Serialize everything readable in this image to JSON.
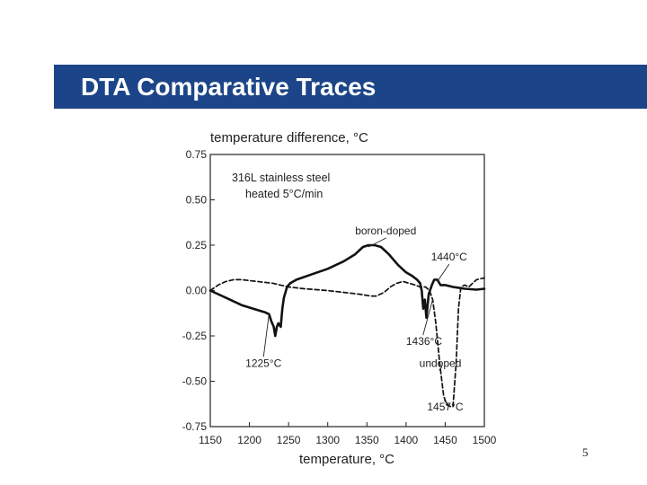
{
  "slide": {
    "title": "DTA Comparative Traces",
    "page_number": "5",
    "accent_color": "#1c4589"
  },
  "chart_data": {
    "type": "line",
    "title": "",
    "ylabel": "temperature difference, °C",
    "xlabel": "temperature, °C",
    "xlim": [
      1150,
      1500
    ],
    "ylim": [
      -0.75,
      0.75
    ],
    "x_ticks": [
      1150,
      1200,
      1250,
      1300,
      1350,
      1400,
      1450,
      1500
    ],
    "x_tick_labels": [
      "1150",
      "1200",
      "1250",
      "1300",
      "1350",
      "1400",
      "1450",
      "1500"
    ],
    "y_ticks": [
      0.75,
      0.5,
      0.25,
      0.0,
      -0.25,
      -0.5,
      -0.75
    ],
    "y_tick_labels": [
      "0.75",
      "0.50",
      "0.25",
      "0.00",
      "-0.25",
      "-0.50",
      "-0.75"
    ],
    "grid": false,
    "inset_text": [
      "316L stainless steel",
      "heated 5°C/min"
    ],
    "series": [
      {
        "name": "boron-doped",
        "style": "solid",
        "color": "#111111",
        "points": [
          [
            1150,
            0.0
          ],
          [
            1160,
            -0.02
          ],
          [
            1175,
            -0.05
          ],
          [
            1190,
            -0.08
          ],
          [
            1205,
            -0.1
          ],
          [
            1220,
            -0.12
          ],
          [
            1225,
            -0.13
          ],
          [
            1228,
            -0.17
          ],
          [
            1231,
            -0.2
          ],
          [
            1233,
            -0.25
          ],
          [
            1235,
            -0.2
          ],
          [
            1237,
            -0.18
          ],
          [
            1240,
            -0.2
          ],
          [
            1242,
            -0.1
          ],
          [
            1244,
            -0.04
          ],
          [
            1248,
            0.02
          ],
          [
            1252,
            0.04
          ],
          [
            1260,
            0.06
          ],
          [
            1280,
            0.09
          ],
          [
            1300,
            0.12
          ],
          [
            1320,
            0.16
          ],
          [
            1335,
            0.2
          ],
          [
            1345,
            0.24
          ],
          [
            1352,
            0.25
          ],
          [
            1360,
            0.25
          ],
          [
            1368,
            0.24
          ],
          [
            1378,
            0.2
          ],
          [
            1390,
            0.14
          ],
          [
            1400,
            0.1
          ],
          [
            1408,
            0.08
          ],
          [
            1414,
            0.06
          ],
          [
            1418,
            0.04
          ],
          [
            1420,
            0.0
          ],
          [
            1422,
            -0.1
          ],
          [
            1424,
            -0.05
          ],
          [
            1426,
            -0.15
          ],
          [
            1429,
            -0.02
          ],
          [
            1433,
            0.03
          ],
          [
            1436,
            0.06
          ],
          [
            1440,
            0.06
          ],
          [
            1444,
            0.03
          ],
          [
            1450,
            0.03
          ],
          [
            1460,
            0.02
          ],
          [
            1475,
            0.01
          ],
          [
            1490,
            0.005
          ],
          [
            1500,
            0.01
          ]
        ]
      },
      {
        "name": "undoped",
        "style": "dashed",
        "color": "#111111",
        "points": [
          [
            1150,
            0.0
          ],
          [
            1160,
            0.03
          ],
          [
            1170,
            0.05
          ],
          [
            1180,
            0.06
          ],
          [
            1190,
            0.06
          ],
          [
            1210,
            0.05
          ],
          [
            1230,
            0.04
          ],
          [
            1250,
            0.02
          ],
          [
            1270,
            0.01
          ],
          [
            1300,
            0.0
          ],
          [
            1320,
            -0.01
          ],
          [
            1340,
            -0.02
          ],
          [
            1355,
            -0.03
          ],
          [
            1362,
            -0.03
          ],
          [
            1372,
            -0.01
          ],
          [
            1380,
            0.02
          ],
          [
            1388,
            0.04
          ],
          [
            1396,
            0.05
          ],
          [
            1404,
            0.04
          ],
          [
            1412,
            0.03
          ],
          [
            1418,
            0.02
          ],
          [
            1425,
            0.02
          ],
          [
            1430,
            0.0
          ],
          [
            1434,
            -0.05
          ],
          [
            1438,
            -0.18
          ],
          [
            1443,
            -0.4
          ],
          [
            1448,
            -0.58
          ],
          [
            1452,
            -0.63
          ],
          [
            1457,
            -0.64
          ],
          [
            1460,
            -0.64
          ],
          [
            1464,
            -0.4
          ],
          [
            1467,
            -0.1
          ],
          [
            1470,
            0.02
          ],
          [
            1475,
            0.03
          ],
          [
            1480,
            0.02
          ],
          [
            1485,
            0.04
          ],
          [
            1490,
            0.06
          ],
          [
            1500,
            0.07
          ]
        ]
      }
    ],
    "annotations": [
      {
        "text": "boron-doped",
        "target": [
          1352,
          0.24
        ],
        "label_at": [
          1335,
          0.31
        ],
        "anchor": "start"
      },
      {
        "text": "1440°C",
        "target": [
          1440,
          0.05
        ],
        "label_at": [
          1455,
          0.165
        ],
        "anchor": "middle"
      },
      {
        "text": "1436°C",
        "target": [
          1434,
          -0.05
        ],
        "label_at": [
          1400,
          -0.3
        ],
        "anchor": "start"
      },
      {
        "text": "1225°C",
        "target": [
          1225,
          -0.13
        ],
        "label_at": [
          1218,
          -0.42
        ],
        "anchor": "middle"
      },
      {
        "text": "undoped",
        "target": [
          1446,
          -0.42
        ],
        "label_at": [
          1417,
          -0.42
        ],
        "anchor": "start"
      },
      {
        "text": "1457°C",
        "target": [
          1457,
          -0.64
        ],
        "label_at": [
          1427,
          -0.66
        ],
        "anchor": "start"
      }
    ]
  }
}
